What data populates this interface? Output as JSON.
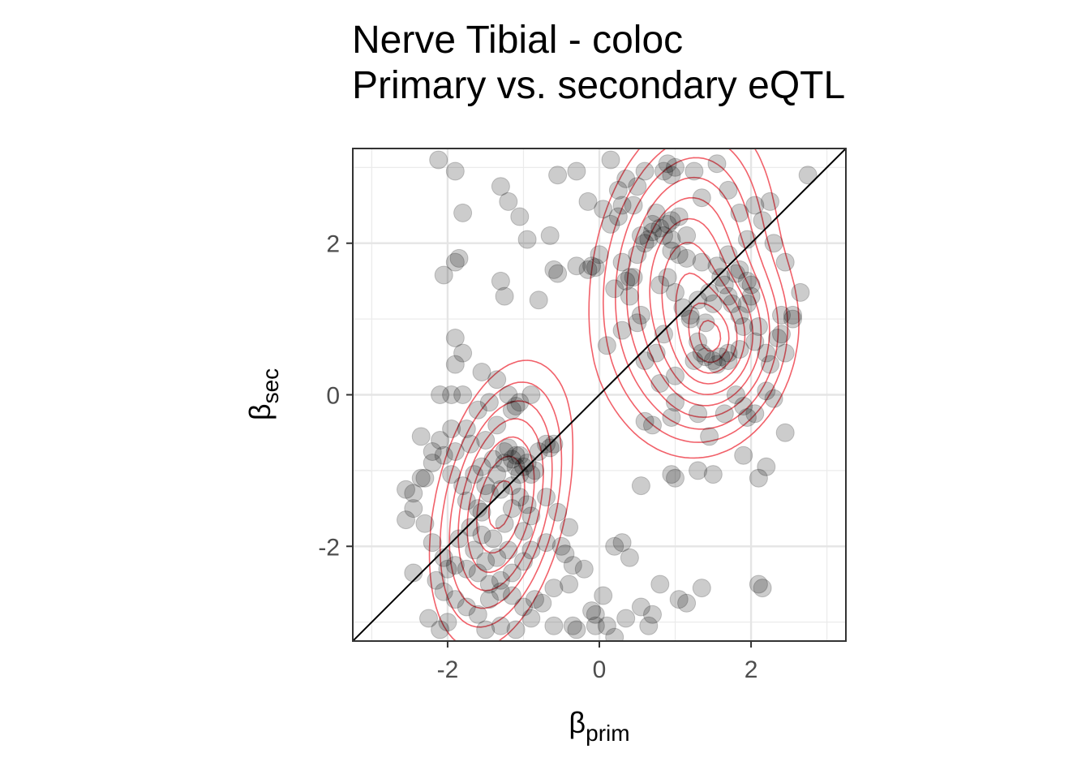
{
  "chart_data": {
    "type": "scatter",
    "title_lines": [
      "Nerve Tibial - coloc",
      "Primary vs. secondary eQTL"
    ],
    "xlabel": {
      "symbol": "β",
      "subscript": "prim"
    },
    "ylabel": {
      "symbol": "β",
      "subscript": "sec"
    },
    "xlim": [
      -3.25,
      3.25
    ],
    "ylim": [
      -3.25,
      3.25
    ],
    "x_ticks": [
      -2,
      0,
      2
    ],
    "x_tick_labels": [
      "-2",
      "0",
      "2"
    ],
    "y_ticks": [
      -2,
      0,
      2
    ],
    "y_tick_labels": [
      "-2",
      "0",
      "2"
    ],
    "grid": true,
    "reference_line": {
      "slope": 1,
      "intercept": 0,
      "color": "#000000"
    },
    "point_color": "#000000",
    "point_alpha": 0.2,
    "contour_color": "#f0505a",
    "density_modes": [
      {
        "x": -1.3,
        "y": -1.45,
        "sx": 0.42,
        "sy": 0.85,
        "rho": 0.35
      },
      {
        "x": 1.1,
        "y": 1.6,
        "sx": 0.55,
        "sy": 0.95,
        "rho": 0.2
      },
      {
        "x": 1.6,
        "y": 0.6,
        "sx": 0.45,
        "sy": 0.6,
        "rho": 0.2
      }
    ],
    "contour_levels": [
      0.06,
      0.12,
      0.2,
      0.3,
      0.42,
      0.55,
      0.68,
      0.8,
      0.9,
      0.97
    ],
    "points": [
      [
        -2.12,
        3.1
      ],
      [
        -1.9,
        2.95
      ],
      [
        -1.3,
        2.75
      ],
      [
        -1.2,
        2.55
      ],
      [
        -1.05,
        2.35
      ],
      [
        -1.8,
        2.4
      ],
      [
        -1.85,
        1.8
      ],
      [
        -1.9,
        1.75
      ],
      [
        -2.05,
        1.58
      ],
      [
        -1.3,
        1.5
      ],
      [
        -1.25,
        1.3
      ],
      [
        -0.95,
        2.05
      ],
      [
        -0.65,
        2.1
      ],
      [
        -0.6,
        1.65
      ],
      [
        -0.55,
        1.6
      ],
      [
        -0.3,
        1.7
      ],
      [
        -0.15,
        1.65
      ],
      [
        -0.05,
        1.68
      ],
      [
        -0.8,
        1.25
      ],
      [
        -0.55,
        2.9
      ],
      [
        -0.3,
        2.95
      ],
      [
        -0.15,
        2.55
      ],
      [
        0.05,
        2.45
      ],
      [
        0.15,
        3.1
      ],
      [
        0.25,
        2.7
      ],
      [
        0.35,
        2.85
      ],
      [
        0.45,
        2.5
      ],
      [
        0.6,
        2.95
      ],
      [
        0.75,
        2.4
      ],
      [
        0.8,
        2.2
      ],
      [
        0.9,
        2.25
      ],
      [
        0.95,
        2.05
      ],
      [
        1.05,
        2.35
      ],
      [
        1.15,
        2.1
      ],
      [
        1.25,
        2.95
      ],
      [
        1.35,
        2.6
      ],
      [
        1.55,
        3.05
      ],
      [
        1.7,
        2.7
      ],
      [
        1.85,
        2.4
      ],
      [
        2.05,
        2.5
      ],
      [
        2.15,
        2.3
      ],
      [
        2.3,
        2.0
      ],
      [
        2.45,
        1.75
      ],
      [
        2.65,
        1.35
      ],
      [
        2.55,
        1.0
      ],
      [
        2.4,
        0.8
      ],
      [
        2.45,
        0.55
      ],
      [
        2.25,
        0.4
      ],
      [
        2.1,
        0.9
      ],
      [
        2.0,
        1.45
      ],
      [
        1.95,
        1.2
      ],
      [
        1.85,
        1.05
      ],
      [
        1.7,
        1.3
      ],
      [
        1.6,
        1.55
      ],
      [
        1.5,
        1.2
      ],
      [
        1.4,
        0.95
      ],
      [
        1.3,
        0.7
      ],
      [
        1.2,
        1.0
      ],
      [
        1.1,
        1.15
      ],
      [
        1.0,
        1.35
      ],
      [
        0.9,
        1.55
      ],
      [
        0.85,
        0.8
      ],
      [
        0.75,
        0.55
      ],
      [
        0.6,
        0.45
      ],
      [
        0.5,
        0.95
      ],
      [
        0.4,
        1.3
      ],
      [
        0.45,
        1.55
      ],
      [
        0.55,
        1.05
      ],
      [
        0.3,
        0.85
      ],
      [
        0.1,
        0.65
      ],
      [
        0.3,
        1.75
      ],
      [
        0.65,
        2.05
      ],
      [
        0.55,
        2.1
      ],
      [
        0.7,
        2.25
      ],
      [
        0.8,
        1.45
      ],
      [
        0.95,
        1.9
      ],
      [
        1.4,
        0.5
      ],
      [
        1.5,
        0.45
      ],
      [
        1.6,
        0.5
      ],
      [
        1.7,
        0.55
      ],
      [
        1.55,
        0.4
      ],
      [
        1.8,
        0.0
      ],
      [
        1.9,
        -0.15
      ],
      [
        1.95,
        -0.3
      ],
      [
        2.05,
        -0.25
      ],
      [
        2.2,
        0.05
      ],
      [
        2.3,
        -0.05
      ],
      [
        1.65,
        -0.25
      ],
      [
        1.45,
        -0.55
      ],
      [
        1.3,
        -0.25
      ],
      [
        1.0,
        -0.1
      ],
      [
        0.95,
        -0.3
      ],
      [
        0.7,
        -0.4
      ],
      [
        0.6,
        -0.35
      ],
      [
        0.8,
        0.15
      ],
      [
        1.0,
        0.25
      ],
      [
        1.9,
        -0.8
      ],
      [
        2.1,
        -1.1
      ],
      [
        2.2,
        -0.95
      ],
      [
        1.5,
        -1.05
      ],
      [
        1.3,
        -1.0
      ],
      [
        1.0,
        -1.1
      ],
      [
        0.95,
        -1.05
      ],
      [
        0.55,
        -1.2
      ],
      [
        2.45,
        -0.5
      ],
      [
        2.1,
        -2.5
      ],
      [
        2.15,
        -2.55
      ],
      [
        1.35,
        -2.55
      ],
      [
        1.05,
        -2.7
      ],
      [
        1.15,
        -2.75
      ],
      [
        0.7,
        -2.9
      ],
      [
        0.55,
        -2.8
      ],
      [
        0.8,
        -2.5
      ],
      [
        0.4,
        -2.15
      ],
      [
        0.3,
        -1.95
      ],
      [
        0.2,
        -2.0
      ],
      [
        0.1,
        -3.05
      ],
      [
        0.2,
        -3.2
      ],
      [
        -0.1,
        -2.85
      ],
      [
        -0.05,
        -3.05
      ],
      [
        -0.35,
        -3.05
      ],
      [
        -0.3,
        -3.1
      ],
      [
        -0.6,
        -3.05
      ],
      [
        -0.75,
        -2.75
      ],
      [
        -0.85,
        -2.7
      ],
      [
        -0.6,
        -2.55
      ],
      [
        -0.4,
        -2.5
      ],
      [
        -0.2,
        -2.3
      ],
      [
        -0.45,
        -2.1
      ],
      [
        -0.5,
        -2.0
      ],
      [
        -0.7,
        -1.95
      ],
      [
        -0.9,
        -2.05
      ],
      [
        -1.0,
        -2.2
      ],
      [
        -1.15,
        -2.35
      ],
      [
        -1.3,
        -2.45
      ],
      [
        -1.45,
        -2.5
      ],
      [
        -1.6,
        -2.35
      ],
      [
        -1.75,
        -2.3
      ],
      [
        -1.9,
        -2.25
      ],
      [
        -2.05,
        -2.15
      ],
      [
        -2.2,
        -1.95
      ],
      [
        -2.3,
        -1.7
      ],
      [
        -2.45,
        -1.5
      ],
      [
        -2.45,
        -1.3
      ],
      [
        -2.35,
        -1.1
      ],
      [
        -2.2,
        -0.9
      ],
      [
        -2.05,
        -0.8
      ],
      [
        -1.9,
        -0.75
      ],
      [
        -1.7,
        -0.65
      ],
      [
        -1.5,
        -0.6
      ],
      [
        -1.35,
        -0.4
      ],
      [
        -1.15,
        -0.2
      ],
      [
        -1.05,
        -0.1
      ],
      [
        -0.9,
        0.0
      ],
      [
        -1.2,
        0.0
      ],
      [
        -1.45,
        -0.1
      ],
      [
        -1.6,
        -0.2
      ],
      [
        -1.8,
        0.0
      ],
      [
        -1.95,
        0.0
      ],
      [
        -2.1,
        0.0
      ],
      [
        -2.35,
        -0.55
      ],
      [
        -2.2,
        -0.75
      ],
      [
        -1.95,
        -1.05
      ],
      [
        -1.8,
        -1.2
      ],
      [
        -1.65,
        -1.05
      ],
      [
        -1.55,
        -0.95
      ],
      [
        -1.4,
        -0.85
      ],
      [
        -1.25,
        -0.75
      ],
      [
        -1.2,
        -0.7
      ],
      [
        -1.1,
        -0.8
      ],
      [
        -1.0,
        -0.95
      ],
      [
        -0.95,
        -0.9
      ],
      [
        -0.8,
        -0.75
      ],
      [
        -0.7,
        -0.65
      ],
      [
        -0.65,
        -0.7
      ],
      [
        -0.6,
        -0.65
      ],
      [
        -0.85,
        -1.0
      ],
      [
        -1.05,
        -1.05
      ],
      [
        -1.15,
        -1.2
      ],
      [
        -1.3,
        -1.25
      ],
      [
        -1.45,
        -1.3
      ],
      [
        -1.6,
        -1.5
      ],
      [
        -1.7,
        -1.75
      ],
      [
        -1.55,
        -1.85
      ],
      [
        -1.4,
        -1.9
      ],
      [
        -1.25,
        -1.7
      ],
      [
        -1.15,
        -1.5
      ],
      [
        -1.05,
        -1.35
      ],
      [
        -0.95,
        -1.45
      ],
      [
        -0.9,
        -1.6
      ],
      [
        -1.0,
        -1.8
      ],
      [
        -1.2,
        -2.05
      ],
      [
        -1.35,
        -2.15
      ],
      [
        -1.5,
        -2.2
      ],
      [
        -1.65,
        -2.05
      ],
      [
        -1.85,
        -1.9
      ],
      [
        -2.0,
        -2.3
      ],
      [
        -2.15,
        -2.45
      ],
      [
        -2.05,
        -2.6
      ],
      [
        -1.9,
        -2.7
      ],
      [
        -1.75,
        -2.8
      ],
      [
        -1.6,
        -2.9
      ],
      [
        -1.45,
        -2.7
      ],
      [
        -1.3,
        -2.6
      ],
      [
        -1.15,
        -2.65
      ],
      [
        -1.0,
        -2.8
      ],
      [
        -0.9,
        -2.95
      ],
      [
        -1.1,
        -3.1
      ],
      [
        -1.3,
        -3.05
      ],
      [
        -1.5,
        -3.1
      ],
      [
        -2.0,
        -3.0
      ],
      [
        -2.1,
        -3.1
      ],
      [
        -2.25,
        -2.95
      ],
      [
        -2.45,
        -2.35
      ],
      [
        -2.55,
        -1.65
      ],
      [
        -2.55,
        -1.25
      ],
      [
        -1.15,
        -0.85
      ],
      [
        -1.05,
        -0.8
      ],
      [
        -1.25,
        -0.9
      ],
      [
        -1.1,
        -0.95
      ],
      [
        -0.9,
        -1.05
      ],
      [
        -1.35,
        -1.05
      ],
      [
        -1.5,
        -1.2
      ],
      [
        -0.7,
        -1.35
      ],
      [
        -0.55,
        -1.55
      ],
      [
        -0.4,
        -1.75
      ],
      [
        -0.35,
        -2.25
      ],
      [
        0.05,
        -2.65
      ],
      [
        -0.05,
        -2.9
      ],
      [
        0.35,
        -2.95
      ],
      [
        0.65,
        -3.05
      ],
      [
        -1.55,
        -1.55
      ],
      [
        -1.75,
        -1.4
      ],
      [
        -2.3,
        -1.1
      ],
      [
        -2.1,
        -0.6
      ],
      [
        -1.95,
        -0.45
      ],
      [
        -1.75,
        -0.45
      ],
      [
        -1.55,
        0.3
      ],
      [
        -1.35,
        0.2
      ],
      [
        -1.1,
        -0.15
      ],
      [
        -1.9,
        0.4
      ],
      [
        -1.8,
        0.55
      ],
      [
        -1.9,
        0.75
      ],
      [
        1.05,
        1.85
      ],
      [
        1.15,
        1.8
      ],
      [
        1.35,
        1.75
      ],
      [
        1.55,
        1.7
      ],
      [
        1.7,
        1.85
      ],
      [
        1.85,
        1.65
      ],
      [
        1.95,
        1.5
      ],
      [
        2.0,
        1.3
      ],
      [
        1.8,
        1.6
      ],
      [
        0.95,
        2.3
      ],
      [
        0.85,
        2.1
      ],
      [
        0.7,
        2.15
      ],
      [
        0.6,
        2.0
      ],
      [
        0.5,
        1.85
      ],
      [
        0.35,
        1.5
      ],
      [
        0.4,
        1.55
      ],
      [
        0.2,
        1.4
      ],
      [
        -0.1,
        1.7
      ],
      [
        0.0,
        1.85
      ],
      [
        0.15,
        2.25
      ],
      [
        0.25,
        2.35
      ],
      [
        1.2,
        1.05
      ],
      [
        1.3,
        1.25
      ],
      [
        1.45,
        1.35
      ],
      [
        1.65,
        1.45
      ],
      [
        1.75,
        1.2
      ],
      [
        1.9,
        0.9
      ],
      [
        2.05,
        0.7
      ],
      [
        2.2,
        0.55
      ],
      [
        2.35,
        0.75
      ],
      [
        2.4,
        1.05
      ],
      [
        2.55,
        1.05
      ],
      [
        1.35,
        0.55
      ],
      [
        1.7,
        0.45
      ],
      [
        1.85,
        0.6
      ],
      [
        1.25,
        0.45
      ],
      [
        2.75,
        2.9
      ],
      [
        2.25,
        2.55
      ],
      [
        1.95,
        2.05
      ],
      [
        0.9,
        3.05
      ],
      [
        0.95,
        2.9
      ],
      [
        0.85,
        2.95
      ],
      [
        1.0,
        3.0
      ],
      [
        0.3,
        2.5
      ],
      [
        0.5,
        2.75
      ]
    ]
  }
}
